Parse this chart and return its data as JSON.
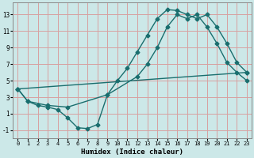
{
  "xlabel": "Humidex (Indice chaleur)",
  "bg_color": "#cce8e8",
  "grid_color": "#d8a0a0",
  "line_color": "#1a6e6e",
  "xlim": [
    -0.5,
    23.5
  ],
  "ylim": [
    -2.0,
    14.5
  ],
  "xticks": [
    0,
    1,
    2,
    3,
    4,
    5,
    6,
    7,
    8,
    9,
    10,
    11,
    12,
    13,
    14,
    15,
    16,
    17,
    18,
    19,
    20,
    21,
    22,
    23
  ],
  "yticks": [
    -1,
    1,
    3,
    5,
    7,
    9,
    11,
    13
  ],
  "curve1_x": [
    0,
    1,
    2,
    3,
    4,
    5,
    6,
    7,
    8,
    9,
    10,
    11,
    12,
    13,
    14,
    15,
    16,
    17,
    18,
    19,
    20,
    21,
    22,
    23
  ],
  "curve1_y": [
    4.0,
    2.5,
    2.0,
    1.8,
    1.5,
    0.5,
    -0.7,
    -0.8,
    -0.3,
    3.3,
    5.0,
    6.5,
    8.5,
    10.5,
    12.5,
    13.6,
    13.5,
    13.0,
    12.5,
    13.0,
    11.5,
    9.5,
    7.2,
    6.0
  ],
  "curve2_x": [
    0,
    1,
    3,
    5,
    9,
    12,
    13,
    14,
    15,
    16,
    17,
    18,
    19,
    20,
    21,
    22,
    23
  ],
  "curve2_y": [
    4.0,
    2.5,
    2.0,
    1.8,
    3.3,
    5.5,
    7.0,
    9.0,
    11.5,
    13.0,
    12.5,
    13.0,
    11.5,
    9.5,
    7.2,
    6.0,
    5.0
  ],
  "curve3_x": [
    0,
    23
  ],
  "curve3_y": [
    4.0,
    6.0
  ]
}
